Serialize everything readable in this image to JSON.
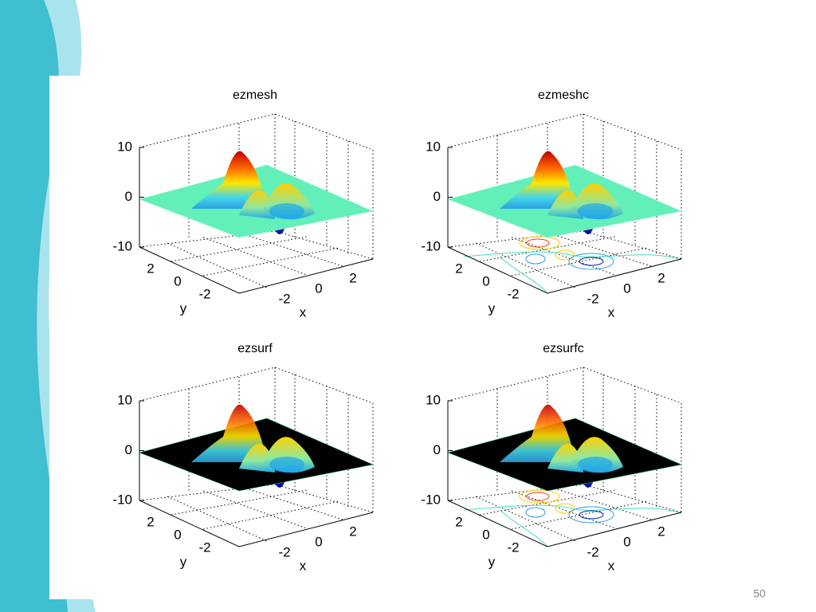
{
  "plots": [
    {
      "title": "ezmesh",
      "style": "mesh",
      "contour": false,
      "z_ticks": [
        10,
        0,
        -10
      ],
      "y_ticks": [
        2,
        0,
        -2
      ],
      "x_ticks": [
        -2,
        0,
        2
      ],
      "x_label": "x",
      "y_label": "y"
    },
    {
      "title": "ezmeshc",
      "style": "mesh",
      "contour": true,
      "z_ticks": [
        10,
        0,
        -10
      ],
      "y_ticks": [
        2,
        0,
        -2
      ],
      "x_ticks": [
        -2,
        0,
        2
      ],
      "x_label": "x",
      "y_label": "y"
    },
    {
      "title": "ezsurf",
      "style": "surf",
      "contour": false,
      "z_ticks": [
        10,
        0,
        -10
      ],
      "y_ticks": [
        2,
        0,
        -2
      ],
      "x_ticks": [
        -2,
        0,
        2
      ],
      "x_label": "x",
      "y_label": "y"
    },
    {
      "title": "ezsurfc",
      "style": "surf",
      "contour": true,
      "z_ticks": [
        10,
        0,
        -10
      ],
      "y_ticks": [
        2,
        0,
        -2
      ],
      "x_ticks": [
        -2,
        0,
        2
      ],
      "x_label": "x",
      "y_label": "y"
    }
  ],
  "slide": {
    "page_number": "50"
  }
}
